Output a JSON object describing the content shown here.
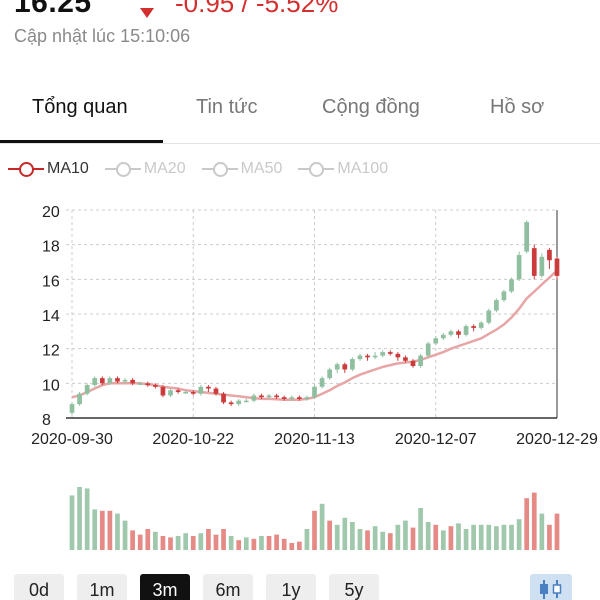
{
  "header": {
    "price": "16.25",
    "change": "-0.95 / -5.52%",
    "updated": "Cập nhật lúc 15:10:06",
    "change_color": "#d32f2f"
  },
  "tabs": [
    {
      "label": "Tổng quan",
      "active": true
    },
    {
      "label": "Tin tức",
      "active": false
    },
    {
      "label": "Cộng đồng",
      "active": false
    },
    {
      "label": "Hồ sơ",
      "active": false
    }
  ],
  "ma_legend": [
    {
      "label": "MA10",
      "on": true
    },
    {
      "label": "MA20",
      "on": false
    },
    {
      "label": "MA50",
      "on": false
    },
    {
      "label": "MA100",
      "on": false
    }
  ],
  "range_buttons": [
    {
      "label": "0d",
      "active": false
    },
    {
      "label": "1m",
      "active": false
    },
    {
      "label": "3m",
      "active": true
    },
    {
      "label": "6m",
      "active": false
    },
    {
      "label": "1y",
      "active": false
    },
    {
      "label": "5y",
      "active": false
    }
  ],
  "chart_type_icon": "candlestick-icon",
  "colors": {
    "up": "#8fbf9f",
    "down": "#cc3b3b",
    "ma": "#e8a5a5",
    "grid": "#cccccc",
    "vol_up": "#9fc8ac",
    "vol_down": "#e58a85"
  },
  "chart_data": {
    "type": "candlestick",
    "ylim": [
      8,
      20
    ],
    "y_ticks": [
      8,
      10,
      12,
      14,
      16,
      18,
      20
    ],
    "x_tick_labels": [
      "2020-09-30",
      "2020-10-22",
      "2020-11-13",
      "2020-12-07",
      "2020-12-29"
    ],
    "x_tick_indices": [
      0,
      16,
      32,
      48,
      64
    ],
    "series_name": "MA10",
    "candles": [
      [
        8.3,
        8.8,
        8.2,
        8.9
      ],
      [
        8.8,
        9.4,
        8.7,
        9.5
      ],
      [
        9.4,
        9.9,
        9.3,
        10.0
      ],
      [
        9.9,
        10.3,
        9.8,
        10.4
      ],
      [
        10.3,
        10.0,
        9.9,
        10.4
      ],
      [
        10.0,
        10.3,
        9.9,
        10.4
      ],
      [
        10.3,
        10.1,
        10.0,
        10.4
      ],
      [
        10.1,
        10.2,
        10.0,
        10.3
      ],
      [
        10.2,
        10.0,
        9.9,
        10.3
      ],
      [
        10.0,
        10.0,
        9.9,
        10.1
      ],
      [
        10.0,
        9.9,
        9.8,
        10.1
      ],
      [
        9.9,
        9.8,
        9.7,
        10.0
      ],
      [
        9.8,
        9.3,
        9.2,
        9.9
      ],
      [
        9.3,
        9.6,
        9.2,
        9.7
      ],
      [
        9.6,
        9.5,
        9.4,
        9.7
      ],
      [
        9.5,
        9.5,
        9.4,
        9.6
      ],
      [
        9.5,
        9.4,
        9.3,
        9.6
      ],
      [
        9.4,
        9.8,
        9.3,
        9.9
      ],
      [
        9.8,
        9.7,
        9.5,
        9.9
      ],
      [
        9.7,
        9.4,
        9.3,
        9.8
      ],
      [
        9.4,
        8.9,
        8.8,
        9.5
      ],
      [
        8.9,
        8.8,
        8.7,
        9.0
      ],
      [
        8.8,
        9.0,
        8.7,
        9.1
      ],
      [
        9.0,
        9.0,
        8.9,
        9.1
      ],
      [
        9.0,
        9.3,
        8.9,
        9.4
      ],
      [
        9.3,
        9.2,
        9.1,
        9.4
      ],
      [
        9.2,
        9.3,
        9.1,
        9.4
      ],
      [
        9.3,
        9.2,
        9.1,
        9.4
      ],
      [
        9.2,
        9.1,
        9.0,
        9.3
      ],
      [
        9.1,
        9.2,
        9.0,
        9.3
      ],
      [
        9.2,
        9.1,
        9.0,
        9.3
      ],
      [
        9.1,
        9.2,
        9.0,
        9.3
      ],
      [
        9.2,
        9.8,
        9.1,
        9.9
      ],
      [
        9.8,
        10.3,
        9.7,
        10.4
      ],
      [
        10.3,
        10.8,
        10.2,
        10.9
      ],
      [
        10.8,
        11.1,
        10.6,
        11.2
      ],
      [
        11.1,
        10.8,
        10.6,
        11.2
      ],
      [
        10.8,
        11.4,
        10.7,
        11.5
      ],
      [
        11.4,
        11.6,
        11.3,
        11.7
      ],
      [
        11.6,
        11.5,
        11.3,
        11.7
      ],
      [
        11.5,
        11.6,
        11.4,
        11.8
      ],
      [
        11.6,
        11.8,
        11.5,
        11.9
      ],
      [
        11.8,
        11.7,
        11.6,
        11.9
      ],
      [
        11.7,
        11.5,
        11.3,
        11.8
      ],
      [
        11.5,
        11.3,
        11.2,
        11.6
      ],
      [
        11.3,
        11.0,
        10.9,
        11.4
      ],
      [
        11.0,
        11.6,
        10.9,
        11.7
      ],
      [
        11.6,
        12.3,
        11.5,
        12.4
      ],
      [
        12.3,
        12.6,
        12.2,
        12.7
      ],
      [
        12.6,
        12.8,
        12.5,
        12.9
      ],
      [
        12.8,
        13.0,
        12.7,
        13.1
      ],
      [
        13.0,
        12.8,
        12.6,
        13.1
      ],
      [
        12.8,
        13.3,
        12.7,
        13.4
      ],
      [
        13.3,
        13.2,
        13.0,
        13.4
      ],
      [
        13.2,
        13.5,
        13.1,
        13.6
      ],
      [
        13.5,
        14.2,
        13.4,
        14.3
      ],
      [
        14.2,
        14.8,
        14.1,
        14.9
      ],
      [
        14.8,
        15.3,
        14.7,
        15.4
      ],
      [
        15.3,
        16.0,
        15.2,
        16.1
      ],
      [
        16.0,
        17.4,
        15.9,
        17.6
      ],
      [
        17.6,
        19.3,
        17.5,
        19.4
      ],
      [
        17.8,
        16.2,
        16.0,
        18.0
      ],
      [
        16.2,
        17.3,
        16.1,
        17.5
      ],
      [
        17.7,
        17.1,
        16.6,
        17.8
      ],
      [
        17.2,
        16.2,
        16.0,
        17.3
      ]
    ],
    "ma10": [
      9.2,
      9.3,
      9.5,
      9.7,
      9.9,
      10.0,
      10.0,
      10.0,
      10.0,
      10.0,
      9.95,
      9.9,
      9.8,
      9.75,
      9.7,
      9.6,
      9.55,
      9.5,
      9.45,
      9.4,
      9.35,
      9.3,
      9.25,
      9.2,
      9.15,
      9.1,
      9.1,
      9.08,
      9.05,
      9.05,
      9.05,
      9.1,
      9.2,
      9.4,
      9.6,
      9.85,
      10.05,
      10.3,
      10.5,
      10.65,
      10.8,
      10.95,
      11.05,
      11.15,
      11.2,
      11.25,
      11.35,
      11.5,
      11.65,
      11.8,
      12.0,
      12.15,
      12.3,
      12.45,
      12.6,
      12.85,
      13.1,
      13.4,
      13.8,
      14.3,
      14.9,
      15.3,
      15.7,
      16.1,
      16.5
    ],
    "volume": [
      [
        0.78,
        1
      ],
      [
        0.9,
        1
      ],
      [
        0.88,
        1
      ],
      [
        0.58,
        1
      ],
      [
        0.56,
        0
      ],
      [
        0.56,
        0
      ],
      [
        0.52,
        1
      ],
      [
        0.42,
        1
      ],
      [
        0.28,
        0
      ],
      [
        0.22,
        0
      ],
      [
        0.3,
        0
      ],
      [
        0.26,
        1
      ],
      [
        0.2,
        0
      ],
      [
        0.18,
        0
      ],
      [
        0.2,
        1
      ],
      [
        0.24,
        1
      ],
      [
        0.2,
        0
      ],
      [
        0.24,
        1
      ],
      [
        0.3,
        0
      ],
      [
        0.22,
        0
      ],
      [
        0.3,
        0
      ],
      [
        0.2,
        1
      ],
      [
        0.14,
        0
      ],
      [
        0.18,
        1
      ],
      [
        0.16,
        0
      ],
      [
        0.2,
        1
      ],
      [
        0.2,
        0
      ],
      [
        0.22,
        0
      ],
      [
        0.16,
        0
      ],
      [
        0.1,
        0
      ],
      [
        0.12,
        0
      ],
      [
        0.3,
        1
      ],
      [
        0.56,
        0
      ],
      [
        0.66,
        1
      ],
      [
        0.42,
        0
      ],
      [
        0.36,
        1
      ],
      [
        0.46,
        1
      ],
      [
        0.4,
        1
      ],
      [
        0.3,
        1
      ],
      [
        0.28,
        0
      ],
      [
        0.34,
        1
      ],
      [
        0.26,
        1
      ],
      [
        0.24,
        0
      ],
      [
        0.36,
        1
      ],
      [
        0.42,
        1
      ],
      [
        0.32,
        0
      ],
      [
        0.6,
        1
      ],
      [
        0.4,
        1
      ],
      [
        0.36,
        0
      ],
      [
        0.28,
        1
      ],
      [
        0.34,
        0
      ],
      [
        0.38,
        1
      ],
      [
        0.3,
        1
      ],
      [
        0.36,
        1
      ],
      [
        0.36,
        1
      ],
      [
        0.36,
        1
      ],
      [
        0.34,
        1
      ],
      [
        0.36,
        1
      ],
      [
        0.36,
        1
      ],
      [
        0.44,
        1
      ],
      [
        0.74,
        0
      ],
      [
        0.82,
        0
      ],
      [
        0.52,
        1
      ],
      [
        0.36,
        0
      ],
      [
        0.52,
        0
      ]
    ]
  }
}
